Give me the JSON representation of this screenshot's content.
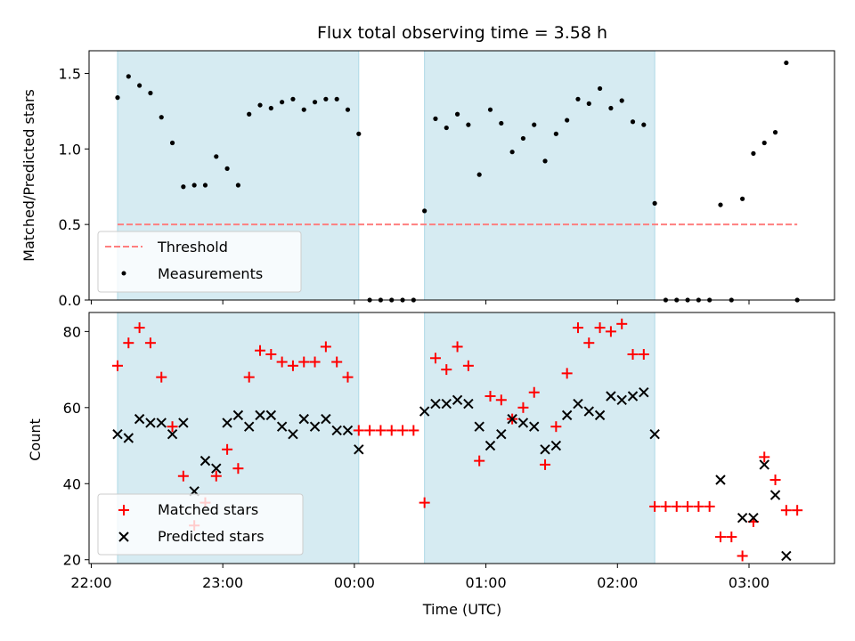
{
  "chart_data": [
    {
      "type": "scatter",
      "title": "Flux total observing time = 3.58 h",
      "xlabel": "",
      "ylabel": "Matched/Predicted stars",
      "ylim": [
        0,
        1.65
      ],
      "yticks": [
        0.0,
        0.5,
        1.0,
        1.5
      ],
      "ytick_labels": [
        "0.0",
        "0.5",
        "1.0",
        "1.5"
      ],
      "grid": false,
      "legend_position": "lower-left",
      "shaded_intervals": [
        [
          "22:12",
          "00:02"
        ],
        [
          "00:32",
          "02:17"
        ]
      ],
      "threshold": {
        "name": "Threshold",
        "value": 0.5,
        "x_range": [
          "22:12",
          "03:22"
        ],
        "color": "#ff7f7f",
        "style": "dashed"
      },
      "series": [
        {
          "name": "Measurements",
          "marker": "dot",
          "color": "#000000",
          "x": [
            "22:12",
            "22:17",
            "22:22",
            "22:27",
            "22:32",
            "22:37",
            "22:42",
            "22:47",
            "22:52",
            "22:57",
            "23:02",
            "23:07",
            "23:12",
            "23:17",
            "23:22",
            "23:27",
            "23:32",
            "23:37",
            "23:42",
            "23:47",
            "23:52",
            "23:57",
            "00:02",
            "00:07",
            "00:12",
            "00:17",
            "00:22",
            "00:27",
            "00:32",
            "00:37",
            "00:42",
            "00:47",
            "00:52",
            "00:57",
            "01:02",
            "01:07",
            "01:12",
            "01:17",
            "01:22",
            "01:27",
            "01:32",
            "01:37",
            "01:42",
            "01:47",
            "01:52",
            "01:57",
            "02:02",
            "02:07",
            "02:12",
            "02:17",
            "02:22",
            "02:27",
            "02:32",
            "02:37",
            "02:42",
            "02:47",
            "02:52",
            "02:57",
            "03:02",
            "03:07",
            "03:12",
            "03:17",
            "03:22"
          ],
          "y": [
            1.34,
            1.48,
            1.42,
            1.37,
            1.21,
            1.04,
            0.75,
            0.76,
            0.76,
            0.95,
            0.87,
            0.76,
            1.23,
            1.29,
            1.27,
            1.31,
            1.33,
            1.26,
            1.31,
            1.33,
            1.33,
            1.26,
            1.1,
            0.0,
            0.0,
            0.0,
            0.0,
            0.0,
            0.59,
            1.2,
            1.14,
            1.23,
            1.16,
            0.83,
            1.26,
            1.17,
            0.98,
            1.07,
            1.16,
            0.92,
            1.1,
            1.19,
            1.33,
            1.3,
            1.4,
            1.27,
            1.32,
            1.18,
            1.16,
            0.64,
            0.0,
            0.0,
            0.0,
            0.0,
            0.0,
            0.63,
            0.0,
            0.67,
            0.97,
            1.04,
            1.11,
            1.57,
            0.0
          ]
        }
      ]
    },
    {
      "type": "scatter",
      "title": "",
      "xlabel": "Time (UTC)",
      "ylabel": "Count",
      "ylim": [
        19,
        85
      ],
      "yticks": [
        20,
        40,
        60,
        80
      ],
      "ytick_labels": [
        "20",
        "40",
        "60",
        "80"
      ],
      "xlim": [
        "21:59",
        "03:39"
      ],
      "xticks": [
        "22:00",
        "23:00",
        "00:00",
        "01:00",
        "02:00",
        "03:00"
      ],
      "xtick_labels": [
        "22:00",
        "23:00",
        "00:00",
        "01:00",
        "02:00",
        "03:00"
      ],
      "grid": false,
      "legend_position": "lower-left",
      "shaded_intervals": [
        [
          "22:12",
          "00:02"
        ],
        [
          "00:32",
          "02:17"
        ]
      ],
      "series": [
        {
          "name": "Matched stars",
          "marker": "plus",
          "color": "#ff0000",
          "x": [
            "22:12",
            "22:17",
            "22:22",
            "22:27",
            "22:32",
            "22:37",
            "22:42",
            "22:47",
            "22:52",
            "22:57",
            "23:02",
            "23:07",
            "23:12",
            "23:17",
            "23:22",
            "23:27",
            "23:32",
            "23:37",
            "23:42",
            "23:47",
            "23:52",
            "23:57",
            "00:02",
            "00:07",
            "00:12",
            "00:17",
            "00:22",
            "00:27",
            "00:32",
            "00:37",
            "00:42",
            "00:47",
            "00:52",
            "00:57",
            "01:02",
            "01:07",
            "01:12",
            "01:17",
            "01:22",
            "01:27",
            "01:32",
            "01:37",
            "01:42",
            "01:47",
            "01:52",
            "01:57",
            "02:02",
            "02:07",
            "02:12",
            "02:17",
            "02:22",
            "02:27",
            "02:32",
            "02:37",
            "02:42",
            "02:47",
            "02:52",
            "02:57",
            "03:02",
            "03:07",
            "03:12",
            "03:17",
            "03:22"
          ],
          "y": [
            71,
            77,
            81,
            77,
            68,
            55,
            42,
            29,
            35,
            42,
            49,
            44,
            68,
            75,
            74,
            72,
            71,
            72,
            72,
            76,
            72,
            68,
            54,
            54,
            54,
            54,
            54,
            54,
            35,
            73,
            70,
            76,
            71,
            46,
            63,
            62,
            57,
            60,
            64,
            45,
            55,
            69,
            81,
            77,
            81,
            80,
            82,
            74,
            74,
            34,
            34,
            34,
            34,
            34,
            34,
            26,
            26,
            21,
            30,
            47,
            41,
            33,
            33
          ]
        },
        {
          "name": "Predicted stars",
          "marker": "x",
          "color": "#000000",
          "x": [
            "22:12",
            "22:17",
            "22:22",
            "22:27",
            "22:32",
            "22:37",
            "22:42",
            "22:47",
            "22:52",
            "22:57",
            "23:02",
            "23:07",
            "23:12",
            "23:17",
            "23:22",
            "23:27",
            "23:32",
            "23:37",
            "23:42",
            "23:47",
            "23:52",
            "23:57",
            "00:02",
            "00:32",
            "00:37",
            "00:42",
            "00:47",
            "00:52",
            "00:57",
            "01:02",
            "01:07",
            "01:12",
            "01:17",
            "01:22",
            "01:27",
            "01:32",
            "01:37",
            "01:42",
            "01:47",
            "01:52",
            "01:57",
            "02:02",
            "02:07",
            "02:12",
            "02:17",
            "02:47",
            "02:57",
            "03:02",
            "03:07",
            "03:12",
            "03:17"
          ],
          "y": [
            53,
            52,
            57,
            56,
            56,
            53,
            56,
            38,
            46,
            44,
            56,
            58,
            55,
            58,
            58,
            55,
            53,
            57,
            55,
            57,
            54,
            54,
            49,
            59,
            61,
            61,
            62,
            61,
            55,
            50,
            53,
            57,
            56,
            55,
            49,
            50,
            58,
            61,
            59,
            58,
            63,
            62,
            63,
            64,
            53,
            41,
            31,
            31,
            45,
            37,
            21
          ]
        }
      ]
    }
  ]
}
